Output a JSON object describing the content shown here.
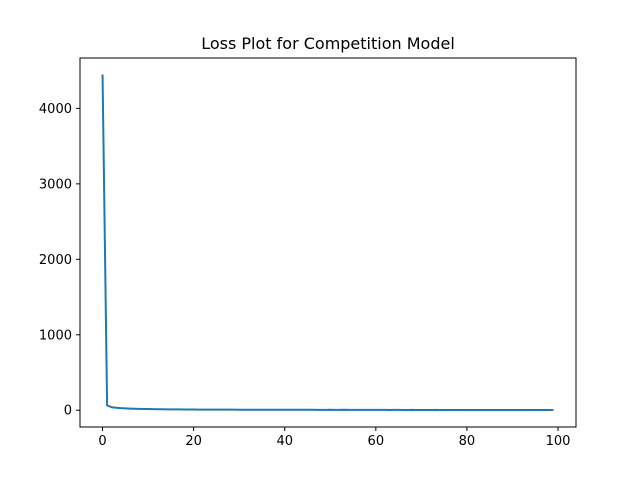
{
  "chart_data": {
    "type": "line",
    "title": "Loss Plot for Competition Model",
    "xlabel": "",
    "ylabel": "",
    "xlim": [
      -4.95,
      103.95
    ],
    "ylim": [
      -222,
      4668
    ],
    "x_ticks": [
      0,
      20,
      40,
      60,
      80,
      100
    ],
    "y_ticks": [
      0,
      1000,
      2000,
      3000,
      4000
    ],
    "grid": false,
    "legend": false,
    "series": [
      {
        "color": "#1f77b4",
        "x": [
          0,
          1,
          2,
          3,
          4,
          5,
          6,
          7,
          8,
          9,
          10,
          11,
          12,
          13,
          14,
          15,
          16,
          17,
          18,
          19,
          20,
          21,
          22,
          23,
          24,
          25,
          26,
          27,
          28,
          29,
          30,
          31,
          32,
          33,
          34,
          35,
          36,
          37,
          38,
          39,
          40,
          41,
          42,
          43,
          44,
          45,
          46,
          47,
          48,
          49,
          50,
          51,
          52,
          53,
          54,
          55,
          56,
          57,
          58,
          59,
          60,
          61,
          62,
          63,
          64,
          65,
          66,
          67,
          68,
          69,
          70,
          71,
          72,
          73,
          74,
          75,
          76,
          77,
          78,
          79,
          80,
          81,
          82,
          83,
          84,
          85,
          86,
          87,
          88,
          89,
          90,
          91,
          92,
          93,
          94,
          95,
          96,
          97,
          98,
          99
        ],
        "values": [
          4450,
          65,
          40,
          33,
          28,
          25,
          22,
          20,
          18,
          17,
          16,
          15,
          14,
          13,
          12,
          12,
          11,
          11,
          10,
          10,
          10,
          9,
          9,
          9,
          9,
          8,
          8,
          8,
          8,
          8,
          7,
          7,
          7,
          7,
          7,
          7,
          7,
          6,
          6,
          6,
          6,
          6,
          6,
          6,
          6,
          6,
          6,
          5,
          5,
          5,
          6,
          5,
          5,
          6,
          5,
          5,
          5,
          5,
          5,
          5,
          5,
          5,
          5,
          4,
          5,
          5,
          4,
          4,
          5,
          4,
          4,
          4,
          4,
          5,
          4,
          4,
          4,
          4,
          4,
          4,
          4,
          4,
          4,
          4,
          4,
          4,
          4,
          4,
          4,
          4,
          4,
          4,
          4,
          4,
          4,
          4,
          4,
          4,
          4,
          4
        ]
      }
    ]
  }
}
